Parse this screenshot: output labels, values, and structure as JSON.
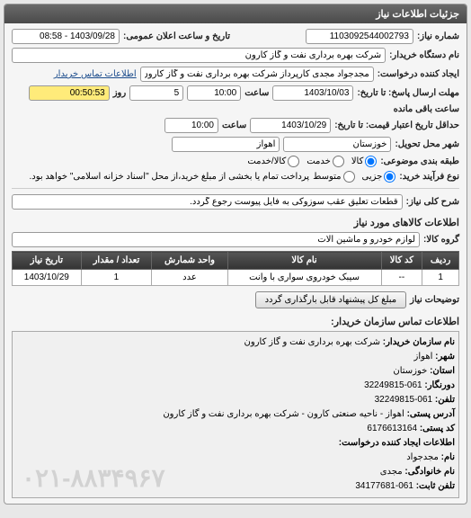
{
  "header": {
    "title": "جزئیات اطلاعات نیاز"
  },
  "fields": {
    "need_number_label": "شماره نیاز:",
    "need_number": "1103092544002793",
    "public_announce_label": "تاریخ و ساعت اعلان عمومی:",
    "public_announce": "1403/09/28 - 08:58",
    "buyer_device_label": "نام دستگاه خریدار:",
    "buyer_device": "شرکت بهره برداری نفت و گاز کارون",
    "creator_label": "ایجاد کننده درخواست:",
    "creator": "مجدجواد مجدی کارپرداز شرکت بهره برداری نفت و گاز کارون",
    "contact_link": "اطلاعات تماس خریدار",
    "deadline_label": "مهلت ارسال پاسخ: تا تاریخ:",
    "deadline_date": "1403/10/03",
    "time_label": "ساعت",
    "deadline_time": "10:00",
    "days_label": "روز",
    "days": "5",
    "remaining_label": "ساعت باقی مانده",
    "remaining": "00:50:53",
    "validity_label": "حداقل تاریخ اعتبار قیمت: تا تاریخ:",
    "validity_date": "1403/10/29",
    "validity_time": "10:00",
    "city_label": "شهر محل تحویل:",
    "city1": "خوزستان",
    "city2": "اهواز",
    "category_label": "طبقه بندی موضوعی:",
    "radio_goods": "کالا",
    "radio_service": "خدمت",
    "radio_both": "کالا/خدمت",
    "process_label": "نوع فرآیند خرید:",
    "radio_minor": "جزیی",
    "radio_medium": "متوسط",
    "process_note": "پرداخت تمام یا بخشی از مبلغ خرید،از محل \"اسناد خزانه اسلامی\" خواهد بود.",
    "need_key_label": "شرح کلی نیاز:",
    "need_key": "قطعات تعلیق عقب سوزوکی به فایل پیوست رجوع گردد.",
    "items_title": "اطلاعات کالاهای مورد نیاز",
    "group_label": "گروه کالا:",
    "group": "لوازم خودرو و ماشین آلات",
    "desc_label": "توضیحات نیاز",
    "desc_btn": "مبلغ کل پیشنهاد قابل بارگذاری گردد",
    "contact_title": "اطلاعات تماس سازمان خریدار:",
    "c_org_label": "نام سازمان خریدار:",
    "c_org": "شرکت بهره برداری نفت و گاز کارون",
    "c_city_label": "شهر:",
    "c_city": "اهواز",
    "c_province_label": "استان:",
    "c_province": "خوزستان",
    "c_fax_label": "دورنگار:",
    "c_fax": "061-32249815",
    "c_phone_label": "تلفن:",
    "c_phone": "061-32249815",
    "c_address_label": "آدرس پستی:",
    "c_address": "اهواز - ناحیه صنعتی کارون - شرکت بهره برداری نفت و گاز کارون",
    "c_postal_label": "کد پستی:",
    "c_postal": "6176613164",
    "c_creator_title": "اطلاعات ایجاد کننده درخواست:",
    "c_name_label": "نام:",
    "c_name": "مجدجواد",
    "c_family_label": "نام خانوادگی:",
    "c_family": "مجدی",
    "c_tel_label": "تلفن ثابت:",
    "c_tel": "061-34177681",
    "watermark": "۰۲۱-۸۸۳۴۹۶۷"
  },
  "table": {
    "headers": {
      "row": "ردیف",
      "code": "کد کالا",
      "name": "نام کالا",
      "unit": "واحد شمارش",
      "qty": "تعداد / مقدار",
      "date": "تاریخ نیاز"
    },
    "rows": [
      {
        "row": "1",
        "code": "--",
        "name": "سیبک خودروی سواری با وانت",
        "unit": "عدد",
        "qty": "1",
        "date": "1403/10/29"
      }
    ]
  }
}
